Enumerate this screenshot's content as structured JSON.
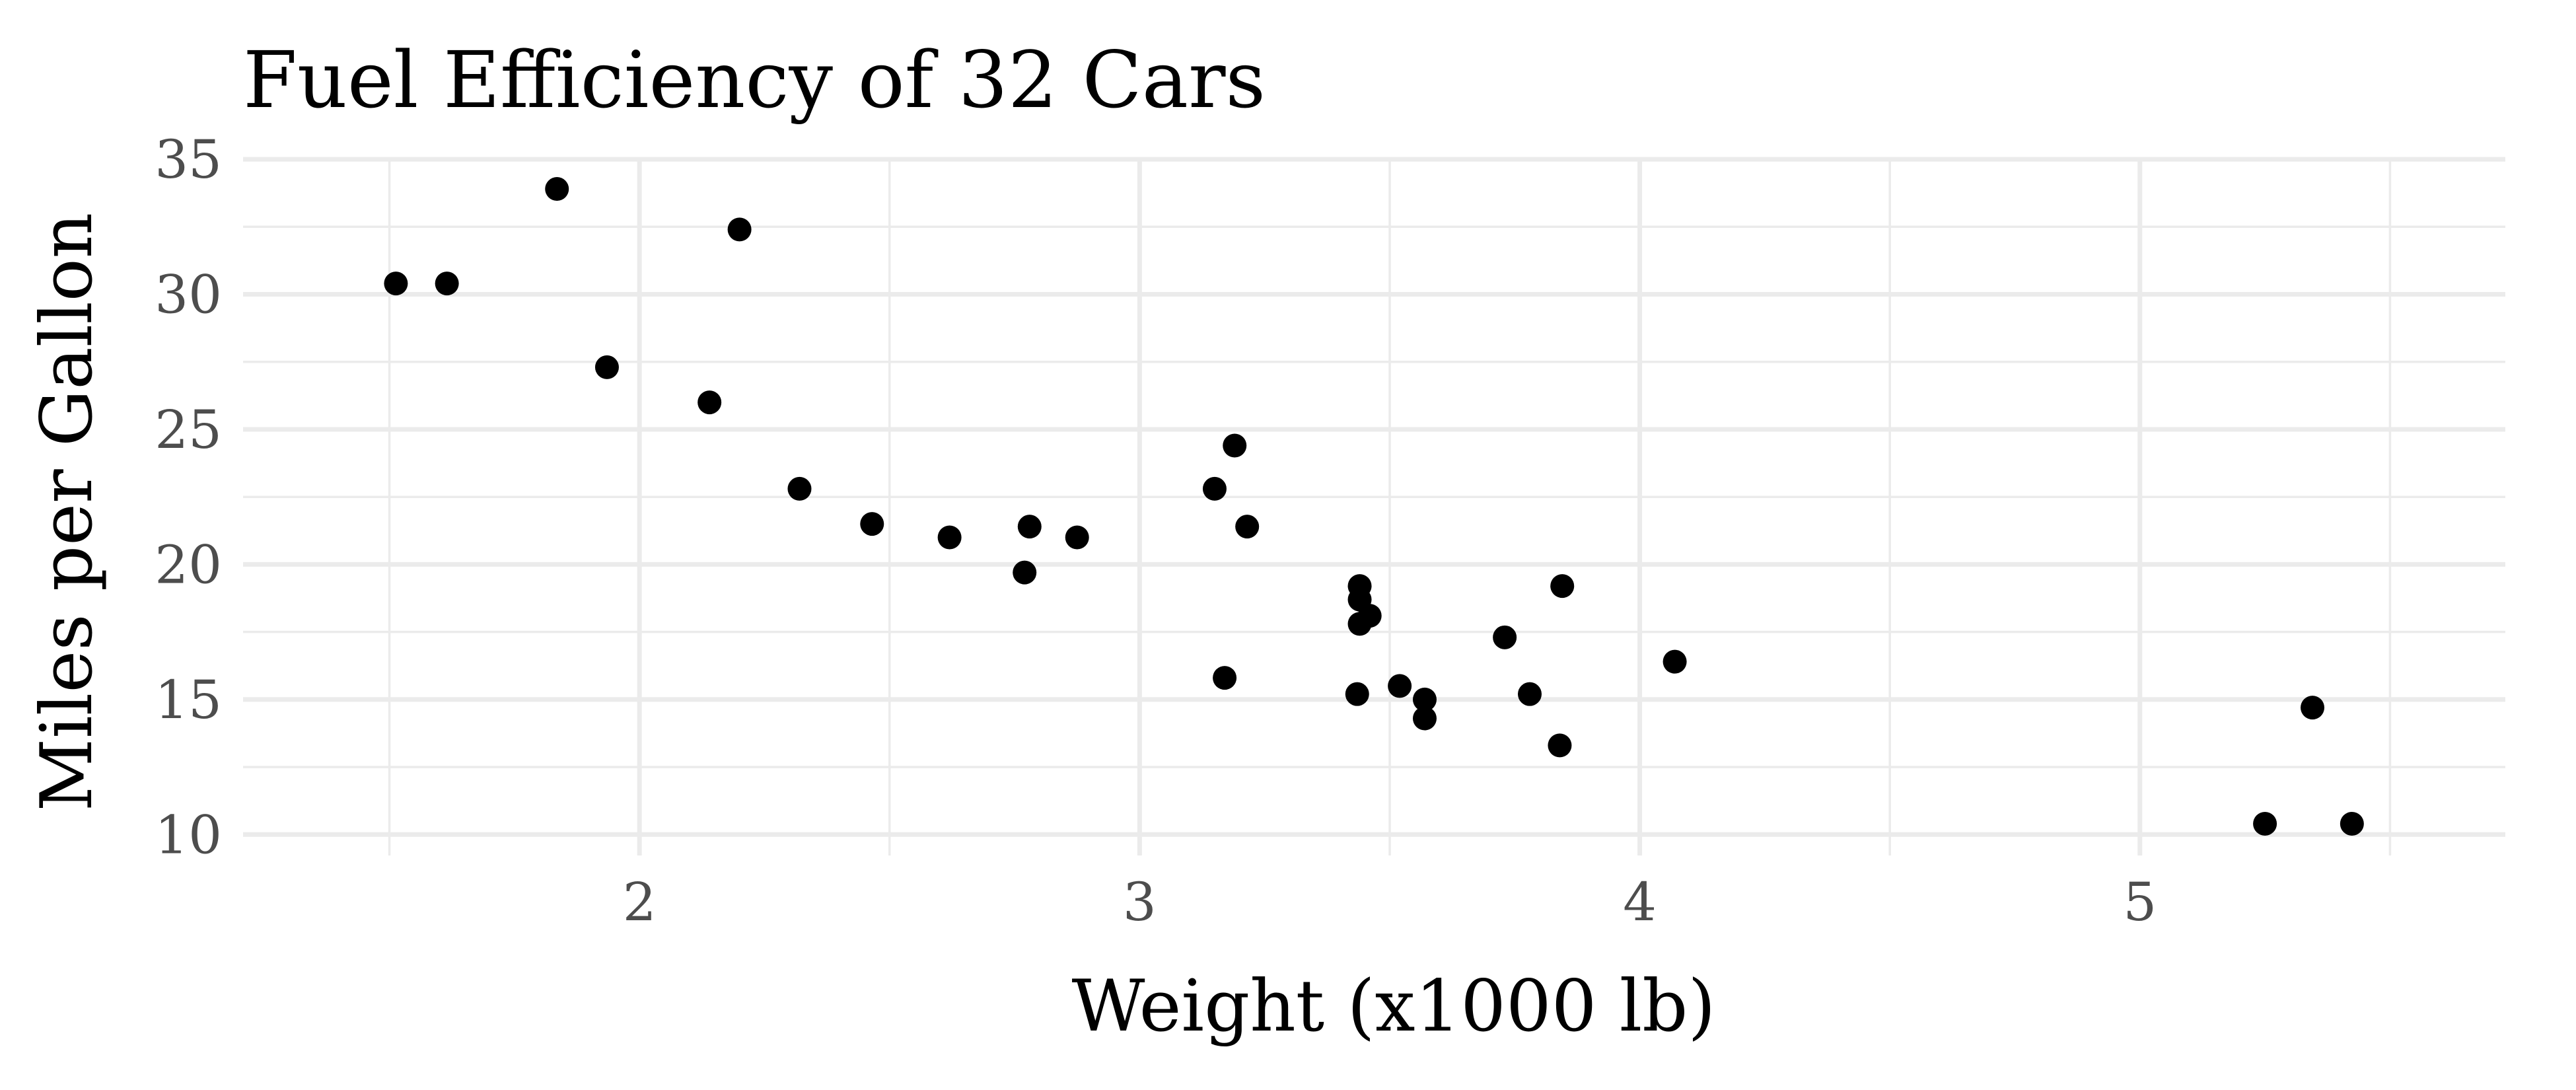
{
  "chart_data": {
    "type": "scatter",
    "title": "Fuel Efficiency of 32 Cars",
    "xlabel": "Weight (x1000 lb)",
    "ylabel": "Miles per Gallon",
    "xlim": [
      1.413,
      5.525
    ],
    "ylim": [
      10.4,
      33.9
    ],
    "x_ticks": [
      2,
      3,
      4,
      5
    ],
    "y_ticks": [
      10,
      15,
      20,
      25,
      30,
      35
    ],
    "grid": true,
    "point_color": "#000000",
    "points": [
      {
        "x": 2.62,
        "y": 21.0
      },
      {
        "x": 2.875,
        "y": 21.0
      },
      {
        "x": 2.32,
        "y": 22.8
      },
      {
        "x": 3.215,
        "y": 21.4
      },
      {
        "x": 3.44,
        "y": 18.7
      },
      {
        "x": 3.46,
        "y": 18.1
      },
      {
        "x": 3.57,
        "y": 14.3
      },
      {
        "x": 3.19,
        "y": 24.4
      },
      {
        "x": 3.15,
        "y": 22.8
      },
      {
        "x": 3.44,
        "y": 19.2
      },
      {
        "x": 3.44,
        "y": 17.8
      },
      {
        "x": 4.07,
        "y": 16.4
      },
      {
        "x": 3.73,
        "y": 17.3
      },
      {
        "x": 3.78,
        "y": 15.2
      },
      {
        "x": 5.25,
        "y": 10.4
      },
      {
        "x": 5.424,
        "y": 10.4
      },
      {
        "x": 5.345,
        "y": 14.7
      },
      {
        "x": 2.2,
        "y": 32.4
      },
      {
        "x": 1.615,
        "y": 30.4
      },
      {
        "x": 1.835,
        "y": 33.9
      },
      {
        "x": 2.465,
        "y": 21.5
      },
      {
        "x": 3.52,
        "y": 15.5
      },
      {
        "x": 3.435,
        "y": 15.2
      },
      {
        "x": 3.84,
        "y": 13.3
      },
      {
        "x": 3.845,
        "y": 19.2
      },
      {
        "x": 1.935,
        "y": 27.3
      },
      {
        "x": 2.14,
        "y": 26.0
      },
      {
        "x": 1.513,
        "y": 30.4
      },
      {
        "x": 3.17,
        "y": 15.8
      },
      {
        "x": 2.77,
        "y": 19.7
      },
      {
        "x": 3.57,
        "y": 15.0
      },
      {
        "x": 2.78,
        "y": 21.4
      }
    ]
  }
}
